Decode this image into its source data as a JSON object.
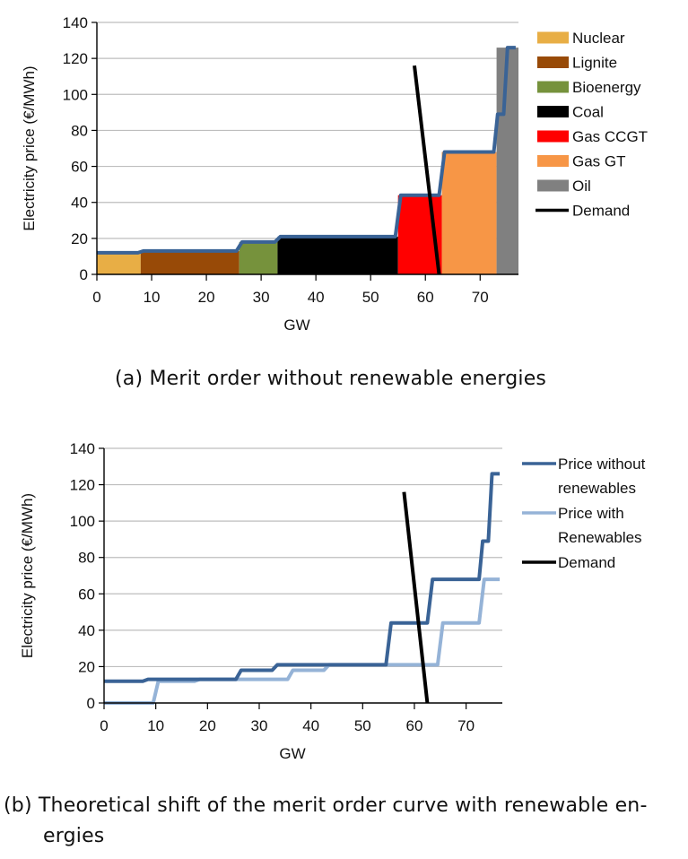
{
  "chart_data": [
    {
      "type": "area",
      "id": "a",
      "title": "",
      "caption": "(a) Merit order without renewable energies",
      "xlabel": "GW",
      "ylabel": "Electricity price (€/MWh)",
      "xlim": [
        0,
        77
      ],
      "ylim": [
        0,
        140
      ],
      "xticks": [
        0,
        10,
        20,
        30,
        40,
        50,
        60,
        70
      ],
      "yticks": [
        0,
        20,
        40,
        60,
        80,
        100,
        120,
        140
      ],
      "grid": "horizontal",
      "legend_position": "right",
      "segments": [
        {
          "name": "Nuclear",
          "x_start": 0,
          "x_end": 8,
          "price": 12,
          "color": "#E8AE45"
        },
        {
          "name": "Lignite",
          "x_start": 8,
          "x_end": 26,
          "price": 13,
          "color": "#984A07"
        },
        {
          "name": "Bioenergy",
          "x_start": 26,
          "x_end": 33,
          "price": 18,
          "color": "#76923C"
        },
        {
          "name": "Coal",
          "x_start": 33,
          "x_end": 55,
          "price": 21,
          "color": "#000000"
        },
        {
          "name": "Gas CCGT",
          "x_start": 55,
          "x_end": 63,
          "price": 44,
          "color": "#FF0000"
        },
        {
          "name": "Gas GT",
          "x_start": 63,
          "x_end": 73,
          "price": 68,
          "color": "#F79646"
        },
        {
          "name": "Oil",
          "x_start": 73,
          "x_end": 77,
          "price": 126,
          "color": "#808080"
        }
      ],
      "supply_curve": {
        "name": "Price without renewables",
        "color": "#3A6396",
        "points": [
          [
            0,
            12
          ],
          [
            7.5,
            12
          ],
          [
            8.5,
            13
          ],
          [
            25.5,
            13
          ],
          [
            26.5,
            18
          ],
          [
            32.5,
            18
          ],
          [
            33.5,
            21
          ],
          [
            54.5,
            21
          ],
          [
            55.5,
            44
          ],
          [
            62.5,
            44
          ],
          [
            63.5,
            68
          ],
          [
            72.5,
            68
          ],
          [
            73.2,
            89
          ],
          [
            74.3,
            89
          ],
          [
            75,
            126
          ],
          [
            76.5,
            126
          ]
        ]
      },
      "demand": {
        "name": "Demand",
        "color": "#000000",
        "points": [
          [
            58,
            116
          ],
          [
            62.5,
            0
          ]
        ]
      },
      "legend": [
        "Nuclear",
        "Lignite",
        "Bioenergy",
        "Coal",
        "Gas CCGT",
        "Gas GT",
        "Oil",
        "Demand"
      ]
    },
    {
      "type": "line",
      "id": "b",
      "title": "",
      "caption_line1": "(b) Theoretical shift of the merit order curve with renewable en-",
      "caption_line2": "ergies",
      "xlabel": "GW",
      "ylabel": "Electricity price (€/MWh)",
      "xlim": [
        0,
        77
      ],
      "ylim": [
        0,
        140
      ],
      "xticks": [
        0,
        10,
        20,
        30,
        40,
        50,
        60,
        70
      ],
      "yticks": [
        0,
        20,
        40,
        60,
        80,
        100,
        120,
        140
      ],
      "grid": "horizontal",
      "legend_position": "right",
      "series": [
        {
          "name": "Price without renewables",
          "legend_lines": [
            "Price without",
            "renewables"
          ],
          "color": "#3A6396",
          "points": [
            [
              0,
              12
            ],
            [
              7.5,
              12
            ],
            [
              8.5,
              13
            ],
            [
              25.5,
              13
            ],
            [
              26.5,
              18
            ],
            [
              32.5,
              18
            ],
            [
              33.5,
              21
            ],
            [
              54.5,
              21
            ],
            [
              55.5,
              44
            ],
            [
              62.5,
              44
            ],
            [
              63.5,
              68
            ],
            [
              72.5,
              68
            ],
            [
              73.2,
              89
            ],
            [
              74.3,
              89
            ],
            [
              75,
              126
            ],
            [
              76.5,
              126
            ]
          ]
        },
        {
          "name": "Price with Renewables",
          "legend_lines": [
            "Price with",
            "Renewables"
          ],
          "color": "#95B3D7",
          "points": [
            [
              0,
              0
            ],
            [
              9.5,
              0
            ],
            [
              10.5,
              12
            ],
            [
              17.5,
              12
            ],
            [
              18.5,
              13
            ],
            [
              35.5,
              13
            ],
            [
              36.5,
              18
            ],
            [
              42.5,
              18
            ],
            [
              43.5,
              21
            ],
            [
              64.5,
              21
            ],
            [
              65.5,
              44
            ],
            [
              72.5,
              44
            ],
            [
              73.5,
              68
            ],
            [
              76.5,
              68
            ]
          ]
        },
        {
          "name": "Demand",
          "legend_lines": [
            "Demand"
          ],
          "color": "#000000",
          "points": [
            [
              58,
              116
            ],
            [
              62.5,
              0
            ]
          ]
        }
      ]
    }
  ]
}
